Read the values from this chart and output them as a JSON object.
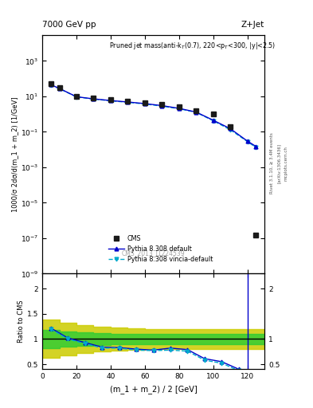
{
  "title_left": "7000 GeV pp",
  "title_right": "Z+Jet",
  "annotation": "Pruned jet mass(anti-k$_T$(0.7), 220<p$_T$<300, |y|<2.5)",
  "watermark": "CMS_2013_I1224539",
  "rivet_label": "Rivet 3.1.10, ≥ 3.4M events",
  "arxiv_label": "[arXiv:1306.3436]",
  "side_label": "mcplots.cern.ch",
  "ylabel_main": "1000/σ 2dσ/d(m_1 + m_2) [1/GeV]",
  "ylabel_ratio": "Ratio to CMS",
  "xlabel": "(m_1 + m_2) / 2 [GeV]",
  "cms_x": [
    5,
    10,
    20,
    30,
    40,
    50,
    60,
    70,
    80,
    90,
    100,
    110,
    125
  ],
  "cms_y": [
    50,
    30,
    10,
    8,
    6.5,
    5.5,
    4.5,
    3.5,
    2.5,
    1.5,
    1.0,
    0.2,
    1.5e-07
  ],
  "pythia_default_x": [
    5,
    10,
    20,
    30,
    40,
    50,
    60,
    70,
    80,
    90,
    100,
    110,
    120,
    125
  ],
  "pythia_default_y": [
    45,
    28,
    9.5,
    7.2,
    5.8,
    4.8,
    3.9,
    3.0,
    2.1,
    1.3,
    0.45,
    0.15,
    0.03,
    0.015
  ],
  "pythia_vincia_x": [
    5,
    10,
    20,
    30,
    40,
    50,
    60,
    70,
    80,
    90,
    100,
    110,
    120,
    125
  ],
  "pythia_vincia_y": [
    44,
    27,
    9.3,
    7.0,
    5.6,
    4.6,
    3.7,
    2.8,
    2.0,
    1.25,
    0.42,
    0.13,
    0.028,
    0.013
  ],
  "ratio_default_x": [
    5,
    15,
    25,
    35,
    45,
    55,
    65,
    75,
    85,
    95,
    105,
    115
  ],
  "ratio_default_y": [
    1.22,
    1.02,
    0.93,
    0.84,
    0.83,
    0.8,
    0.78,
    0.82,
    0.79,
    0.61,
    0.55,
    0.4
  ],
  "ratio_vincia_x": [
    5,
    15,
    25,
    35,
    45,
    55,
    65,
    75,
    85,
    95,
    105,
    115
  ],
  "ratio_vincia_y": [
    1.2,
    1.0,
    0.91,
    0.82,
    0.82,
    0.78,
    0.77,
    0.78,
    0.76,
    0.58,
    0.52,
    0.37
  ],
  "band_edges": [
    0,
    10,
    20,
    30,
    40,
    50,
    60,
    70,
    80,
    90,
    100,
    110,
    120
  ],
  "band_green_lo": [
    0.82,
    0.85,
    0.87,
    0.88,
    0.89,
    0.9,
    0.9,
    0.9,
    0.9,
    0.9,
    0.9,
    0.9,
    0.9
  ],
  "band_green_hi": [
    1.18,
    1.15,
    1.13,
    1.12,
    1.11,
    1.1,
    1.1,
    1.1,
    1.1,
    1.1,
    1.1,
    1.1,
    1.1
  ],
  "band_yellow_lo": [
    0.62,
    0.68,
    0.72,
    0.75,
    0.77,
    0.79,
    0.8,
    0.8,
    0.8,
    0.8,
    0.8,
    0.8,
    0.8
  ],
  "band_yellow_hi": [
    1.38,
    1.32,
    1.28,
    1.25,
    1.23,
    1.21,
    1.2,
    1.2,
    1.2,
    1.2,
    1.2,
    1.2,
    1.2
  ],
  "vertical_line_x": 120,
  "xlim": [
    0,
    130
  ],
  "ylim_main_log": [
    1e-09,
    30000.0
  ],
  "ylim_ratio": [
    0.4,
    2.3
  ],
  "yticks_ratio_left": [
    0.5,
    1.0,
    1.5,
    2.0
  ],
  "ytick_labels_ratio_left": [
    "0.5",
    "1",
    "1.5",
    "2"
  ],
  "yticks_ratio_right": [
    0.5,
    1.0,
    2.0
  ],
  "ytick_labels_ratio_right": [
    "0.5",
    "1",
    "2"
  ],
  "color_cms": "#1a1a1a",
  "color_pythia_default": "#0000cc",
  "color_pythia_vincia": "#00aacc",
  "color_green": "#33cc33",
  "color_yellow": "#cccc00",
  "background_color": "#ffffff"
}
